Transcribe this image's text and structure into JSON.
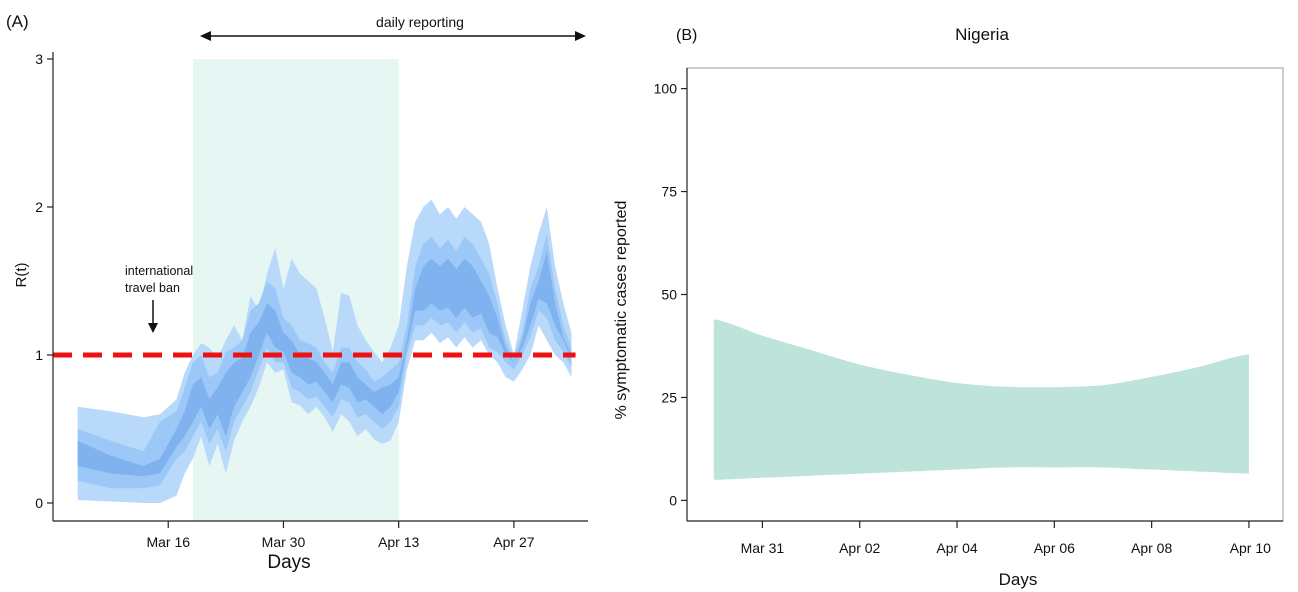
{
  "colors": {
    "outer_band": "#b9d9fb",
    "mid_band": "#9cc8f7",
    "inner_band": "#7fb2ef",
    "highlight": "#e6f6f3",
    "threshold": "#ee1111",
    "reported_band": "#bde3da",
    "axis": "#222222"
  },
  "chart_data": [
    {
      "panel_label": "(A)",
      "type": "area",
      "title": "",
      "xlabel": "Days",
      "ylabel": "R(t)",
      "yticks": [
        0,
        1,
        2,
        3
      ],
      "ylim": [
        0,
        3
      ],
      "xticks": [
        "Mar 16",
        "Mar 30",
        "Apr 13",
        "Apr 27"
      ],
      "xtick_days": [
        16,
        30,
        44,
        58
      ],
      "xlim": [
        2,
        67
      ],
      "x": [
        5,
        9,
        13,
        15,
        17,
        18,
        19,
        20,
        21,
        22,
        23,
        24,
        25,
        26,
        27,
        28,
        29,
        30,
        31,
        32,
        33,
        34,
        35,
        36,
        37,
        38,
        39,
        40,
        41,
        42,
        43,
        44,
        45,
        46,
        47,
        48,
        49,
        50,
        51,
        52,
        53,
        54,
        55,
        56,
        57,
        58,
        59,
        60,
        61,
        62,
        63,
        64,
        65
      ],
      "outer_upper": [
        0.65,
        0.62,
        0.58,
        0.6,
        0.7,
        0.88,
        1.0,
        1.08,
        1.05,
        0.98,
        1.1,
        1.2,
        1.1,
        1.4,
        1.3,
        1.55,
        1.72,
        1.45,
        1.65,
        1.55,
        1.5,
        1.45,
        1.25,
        1.02,
        1.42,
        1.4,
        1.2,
        1.1,
        1.02,
        0.95,
        1.05,
        1.2,
        1.6,
        1.9,
        2.0,
        2.05,
        1.95,
        2.0,
        1.92,
        2.0,
        1.95,
        1.9,
        1.75,
        1.45,
        1.2,
        1.0,
        1.3,
        1.6,
        1.82,
        2.0,
        1.6,
        1.35,
        1.15
      ],
      "outer_lower": [
        0.02,
        0.01,
        0.0,
        0.0,
        0.05,
        0.2,
        0.3,
        0.45,
        0.25,
        0.4,
        0.2,
        0.42,
        0.55,
        0.65,
        0.78,
        0.95,
        0.88,
        0.9,
        0.68,
        0.66,
        0.6,
        0.65,
        0.58,
        0.48,
        0.6,
        0.55,
        0.45,
        0.5,
        0.43,
        0.4,
        0.42,
        0.55,
        0.9,
        1.1,
        1.1,
        1.15,
        1.08,
        1.12,
        1.05,
        1.12,
        1.05,
        1.1,
        1.0,
        0.95,
        0.85,
        0.82,
        0.9,
        1.0,
        1.2,
        1.1,
        1.0,
        0.95,
        0.85
      ],
      "mid_upper": [
        0.5,
        0.42,
        0.35,
        0.55,
        0.62,
        0.78,
        0.95,
        1.0,
        0.85,
        0.88,
        1.02,
        1.05,
        1.1,
        1.3,
        1.35,
        1.5,
        1.45,
        1.25,
        1.2,
        1.1,
        1.08,
        1.05,
        0.95,
        0.88,
        1.05,
        1.05,
        0.95,
        0.9,
        0.82,
        0.85,
        0.9,
        0.95,
        1.2,
        1.6,
        1.75,
        1.8,
        1.72,
        1.78,
        1.7,
        1.8,
        1.75,
        1.65,
        1.55,
        1.35,
        1.1,
        0.98,
        1.15,
        1.45,
        1.6,
        1.82,
        1.45,
        1.2,
        1.05
      ],
      "mid_lower": [
        0.15,
        0.1,
        0.1,
        0.12,
        0.3,
        0.35,
        0.45,
        0.55,
        0.4,
        0.5,
        0.35,
        0.55,
        0.65,
        0.75,
        0.9,
        1.05,
        0.95,
        0.95,
        0.78,
        0.75,
        0.7,
        0.72,
        0.65,
        0.58,
        0.7,
        0.68,
        0.58,
        0.6,
        0.55,
        0.5,
        0.55,
        0.65,
        1.0,
        1.2,
        1.2,
        1.25,
        1.2,
        1.22,
        1.15,
        1.22,
        1.15,
        1.18,
        1.05,
        1.02,
        0.95,
        0.9,
        1.0,
        1.12,
        1.3,
        1.25,
        1.1,
        1.02,
        0.92
      ],
      "inner_upper": [
        0.42,
        0.32,
        0.25,
        0.3,
        0.5,
        0.62,
        0.8,
        0.85,
        0.7,
        0.78,
        0.88,
        0.95,
        0.98,
        1.15,
        1.22,
        1.35,
        1.3,
        1.15,
        1.1,
        1.0,
        0.98,
        0.95,
        0.88,
        0.8,
        0.95,
        0.95,
        0.85,
        0.8,
        0.75,
        0.78,
        0.8,
        0.85,
        1.1,
        1.45,
        1.6,
        1.65,
        1.6,
        1.65,
        1.58,
        1.65,
        1.6,
        1.5,
        1.4,
        1.25,
        1.05,
        0.95,
        1.1,
        1.35,
        1.5,
        1.7,
        1.35,
        1.12,
        1.0
      ],
      "inner_lower": [
        0.25,
        0.2,
        0.18,
        0.2,
        0.38,
        0.45,
        0.55,
        0.65,
        0.5,
        0.6,
        0.45,
        0.65,
        0.75,
        0.85,
        1.0,
        1.15,
        1.05,
        1.02,
        0.88,
        0.85,
        0.8,
        0.82,
        0.75,
        0.68,
        0.8,
        0.78,
        0.68,
        0.7,
        0.65,
        0.6,
        0.65,
        0.75,
        1.05,
        1.3,
        1.3,
        1.35,
        1.3,
        1.32,
        1.25,
        1.32,
        1.25,
        1.28,
        1.15,
        1.12,
        1.0,
        0.95,
        1.05,
        1.2,
        1.38,
        1.35,
        1.2,
        1.1,
        0.98
      ],
      "shaded_period": [
        19,
        44
      ],
      "threshold": 1,
      "arrow_label": "daily reporting",
      "arrow_span": [
        19,
        67
      ],
      "annotation_line1": "international",
      "annotation_line2": "travel ban",
      "annotation_day": 17
    },
    {
      "panel_label": "(B)",
      "type": "area",
      "title": "Nigeria",
      "xlabel": "Days",
      "ylabel": "% symptomatic cases reported",
      "yticks": [
        0,
        25,
        50,
        75,
        100
      ],
      "ylim": [
        -5,
        105
      ],
      "xticks": [
        "Mar 31",
        "Apr 02",
        "Apr 04",
        "Apr 06",
        "Apr 08",
        "Apr 10"
      ],
      "xtick_days": [
        0,
        2,
        4,
        6,
        8,
        10
      ],
      "xlim": [
        -1.55,
        10.7
      ],
      "x": [
        -1,
        0,
        1,
        2,
        3,
        4,
        5,
        6,
        7,
        8,
        9,
        10
      ],
      "upper": [
        44,
        40,
        36.5,
        33,
        30.5,
        28.5,
        27.6,
        27.5,
        28,
        30,
        32.5,
        35.5
      ],
      "lower": [
        5,
        5.5,
        6,
        6.5,
        7,
        7.5,
        8,
        8,
        8,
        7.5,
        7,
        6.5
      ]
    }
  ]
}
